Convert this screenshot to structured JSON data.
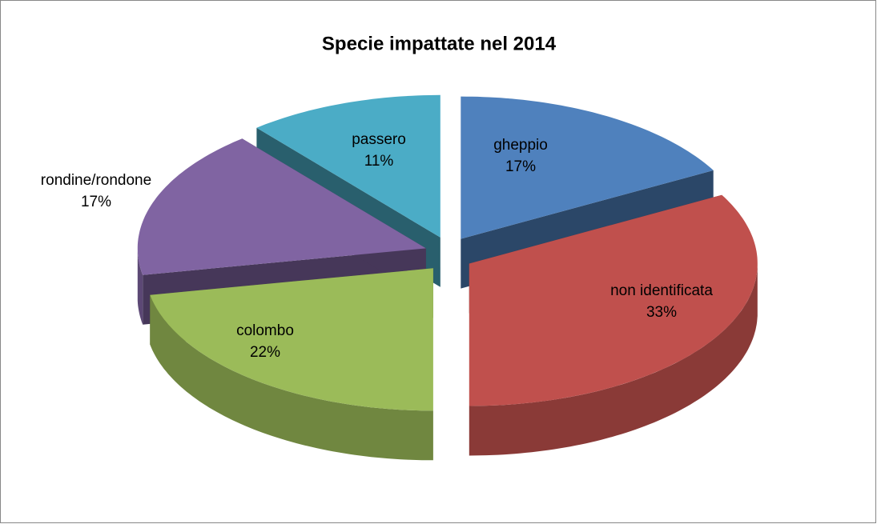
{
  "chart_data": {
    "type": "pie3d",
    "title": "Specie impattate nel 2014",
    "categories": [
      "gheppio",
      "non identificata",
      "colombo",
      "rondine/rondone",
      "passero"
    ],
    "values": [
      17,
      33,
      22,
      17,
      11
    ],
    "value_labels": [
      "17%",
      "33%",
      "22%",
      "17%",
      "11%"
    ],
    "colors": [
      "#4f81bd",
      "#c0504d",
      "#9bbb59",
      "#8064a2",
      "#4bacc6"
    ]
  }
}
